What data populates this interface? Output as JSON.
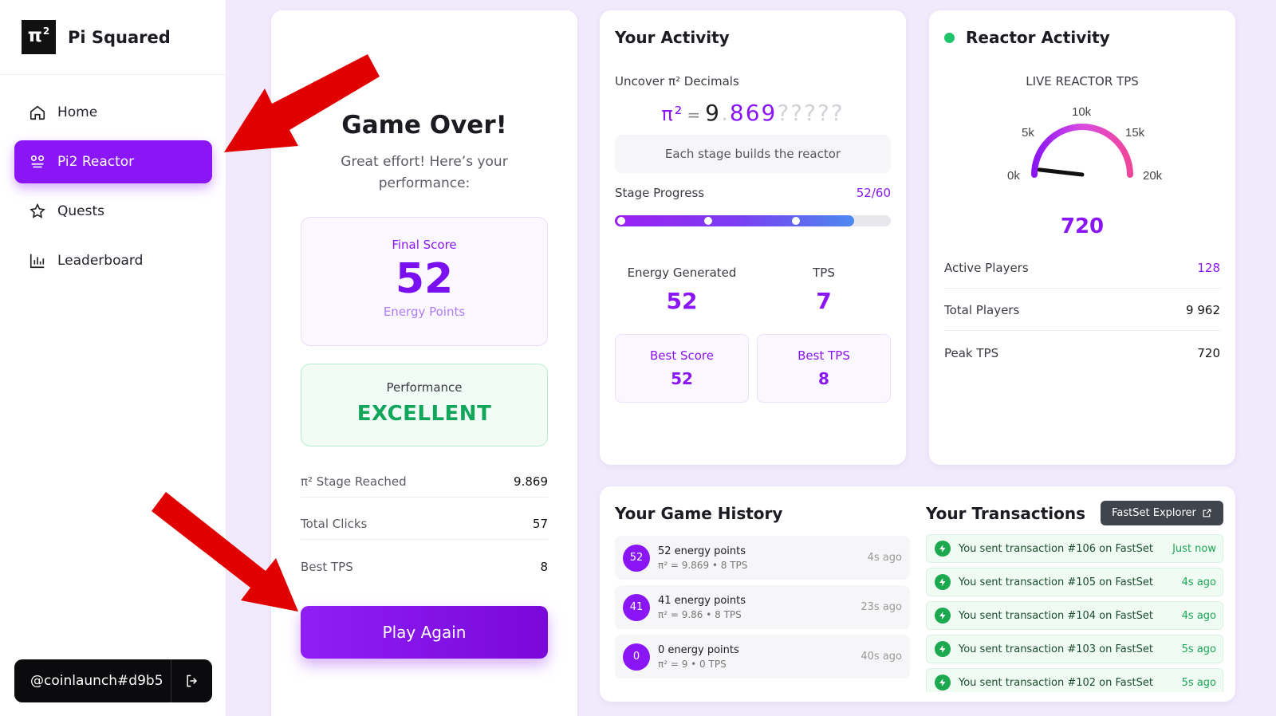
{
  "brand": {
    "logo": "π",
    "logo_sup": "2",
    "name": "Pi Squared"
  },
  "nav": [
    {
      "label": "Home",
      "icon": "home-icon"
    },
    {
      "label": "Pi2 Reactor",
      "icon": "reactor-icon",
      "active": true
    },
    {
      "label": "Quests",
      "icon": "star-icon"
    },
    {
      "label": "Leaderboard",
      "icon": "bar-chart-icon"
    }
  ],
  "user": {
    "handle": "@coinlaunch#d9b5"
  },
  "game": {
    "title": "Game Over!",
    "subtitle": "Great effort! Here’s your performance:",
    "final_score_label": "Final Score",
    "final_score": "52",
    "final_score_unit": "Energy Points",
    "performance_label": "Performance",
    "performance_value": "EXCELLENT",
    "stats": [
      {
        "label": "π² Stage Reached",
        "value": "9.869"
      },
      {
        "label": "Total Clicks",
        "value": "57"
      },
      {
        "label": "Best TPS",
        "value": "8"
      }
    ],
    "play_again": "Play Again"
  },
  "activity": {
    "title": "Your Activity",
    "uncover_label": "Uncover π² Decimals",
    "pi_symbol": "π²",
    "pi_eq": "=",
    "pi_int": "9",
    "pi_dot": ".",
    "pi_decimals": "869",
    "pi_unknown": "?????",
    "stage_note": "Each stage builds the reactor",
    "stage_progress_label": "Stage Progress",
    "stage_progress_value": "52/60",
    "stage_progress_fraction": 0.867,
    "energy_label": "Energy Generated",
    "energy_value": "52",
    "tps_label": "TPS",
    "tps_value": "7",
    "best_score_label": "Best Score",
    "best_score_value": "52",
    "best_tps_label": "Best TPS",
    "best_tps_value": "8"
  },
  "reactor": {
    "title": "Reactor Activity",
    "live_label": "LIVE REACTOR TPS",
    "gauge_ticks": [
      "0k",
      "5k",
      "10k",
      "15k",
      "20k"
    ],
    "gauge_value_fraction": 0.036,
    "tps": "720",
    "rows": [
      {
        "label": "Active Players",
        "value": "128",
        "accent": true
      },
      {
        "label": "Total Players",
        "value": "9 962"
      },
      {
        "label": "Peak TPS",
        "value": "720"
      }
    ]
  },
  "history": {
    "title": "Your Game History",
    "items": [
      {
        "badge": "52",
        "main": "52 energy points",
        "sub": "π² = 9.869 • 8 TPS",
        "time": "4s ago"
      },
      {
        "badge": "41",
        "main": "41 energy points",
        "sub": "π² = 9.86 • 8 TPS",
        "time": "23s ago"
      },
      {
        "badge": "0",
        "main": "0 energy points",
        "sub": "π² = 9 • 0 TPS",
        "time": "40s ago"
      }
    ]
  },
  "transactions": {
    "title": "Your Transactions",
    "explorer_label": "FastSet Explorer",
    "items": [
      {
        "text": "You sent transaction #106 on FastSet",
        "time": "Just now"
      },
      {
        "text": "You sent transaction #105 on FastSet",
        "time": "4s ago"
      },
      {
        "text": "You sent transaction #104 on FastSet",
        "time": "4s ago"
      },
      {
        "text": "You sent transaction #103 on FastSet",
        "time": "5s ago"
      },
      {
        "text": "You sent transaction #102 on FastSet",
        "time": "5s ago"
      }
    ]
  },
  "colors": {
    "accent": "#8a16f5",
    "success": "#12a65a",
    "annotation_arrow": "#e00000"
  }
}
